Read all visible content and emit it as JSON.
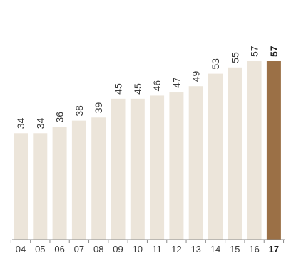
{
  "chart_data": {
    "type": "bar",
    "title": "",
    "xlabel": "",
    "ylabel": "",
    "categories": [
      "04",
      "05",
      "06",
      "07",
      "08",
      "09",
      "10",
      "11",
      "12",
      "13",
      "14",
      "15",
      "16",
      "17"
    ],
    "values": [
      34,
      34,
      36,
      38,
      39,
      45,
      45,
      46,
      47,
      49,
      53,
      55,
      57,
      57
    ],
    "value_labels": [
      "34",
      "34",
      "36",
      "38",
      "39",
      "45",
      "45",
      "46",
      "47",
      "49",
      "53",
      "55",
      "57",
      "57"
    ],
    "ylim": [
      0,
      57
    ],
    "grid": false,
    "highlight_index": 13,
    "colors": {
      "bar": "#ece5da",
      "highlight": "#9b7046",
      "axis": "#8a8a8a",
      "text": "#3a3a3a"
    }
  }
}
